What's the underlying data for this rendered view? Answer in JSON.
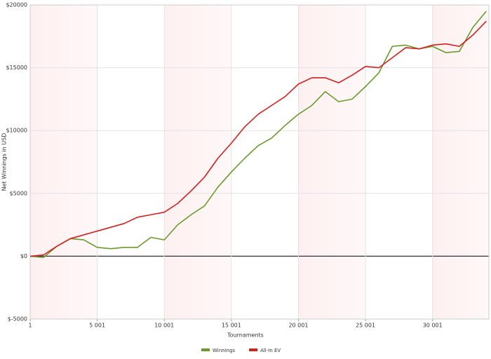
{
  "chart_data": {
    "type": "line",
    "x_label": "Tournaments",
    "y_label": "Net Winnings in USD",
    "x": [
      1,
      1000,
      2000,
      3000,
      4000,
      5000,
      6000,
      7000,
      8000,
      9000,
      10000,
      11000,
      12000,
      13000,
      14000,
      15000,
      16000,
      17000,
      18000,
      19000,
      20000,
      21000,
      22000,
      23000,
      24000,
      25000,
      26000,
      27000,
      28000,
      29000,
      30000,
      31000,
      32000,
      33000,
      34000
    ],
    "series": [
      {
        "name": "Winnings",
        "color": "#6a9a2e",
        "values": [
          0,
          -100,
          800,
          1400,
          1300,
          700,
          600,
          700,
          700,
          1500,
          1300,
          2500,
          3300,
          4000,
          5500,
          6700,
          7800,
          8800,
          9400,
          10400,
          11300,
          12000,
          13100,
          12300,
          12500,
          13500,
          14600,
          16700,
          16800,
          16500,
          16700,
          16200,
          16300,
          18200,
          19500
        ]
      },
      {
        "name": "All-In EV",
        "color": "#d42020",
        "values": [
          0,
          100,
          800,
          1400,
          1700,
          2000,
          2300,
          2600,
          3100,
          3300,
          3500,
          4200,
          5200,
          6300,
          7800,
          9000,
          10300,
          11300,
          12000,
          12700,
          13700,
          14200,
          14200,
          13800,
          14400,
          15100,
          15000,
          15800,
          16600,
          16500,
          16800,
          16900,
          16700,
          17600,
          18700
        ]
      }
    ],
    "xlim": [
      1,
      34200
    ],
    "ylim": [
      -5000,
      20000
    ],
    "xticks": [
      1,
      {
        "value": 5001,
        "label": "5 001"
      },
      {
        "value": 10001,
        "label": "10 001"
      },
      {
        "value": 15001,
        "label": "15 001"
      },
      {
        "value": 20001,
        "label": "20 001"
      },
      {
        "value": 25001,
        "label": "25 001"
      },
      {
        "value": 30001,
        "label": "30 001"
      }
    ],
    "yticks": [
      {
        "value": -5000,
        "label": "$-5000"
      },
      {
        "value": 0,
        "label": "$0"
      },
      {
        "value": 5000,
        "label": "$5000"
      },
      {
        "value": 10000,
        "label": "$10000"
      },
      {
        "value": 15000,
        "label": "$15000"
      },
      {
        "value": 20000,
        "label": "$20000"
      }
    ],
    "grid": true,
    "legend": "bottom"
  }
}
